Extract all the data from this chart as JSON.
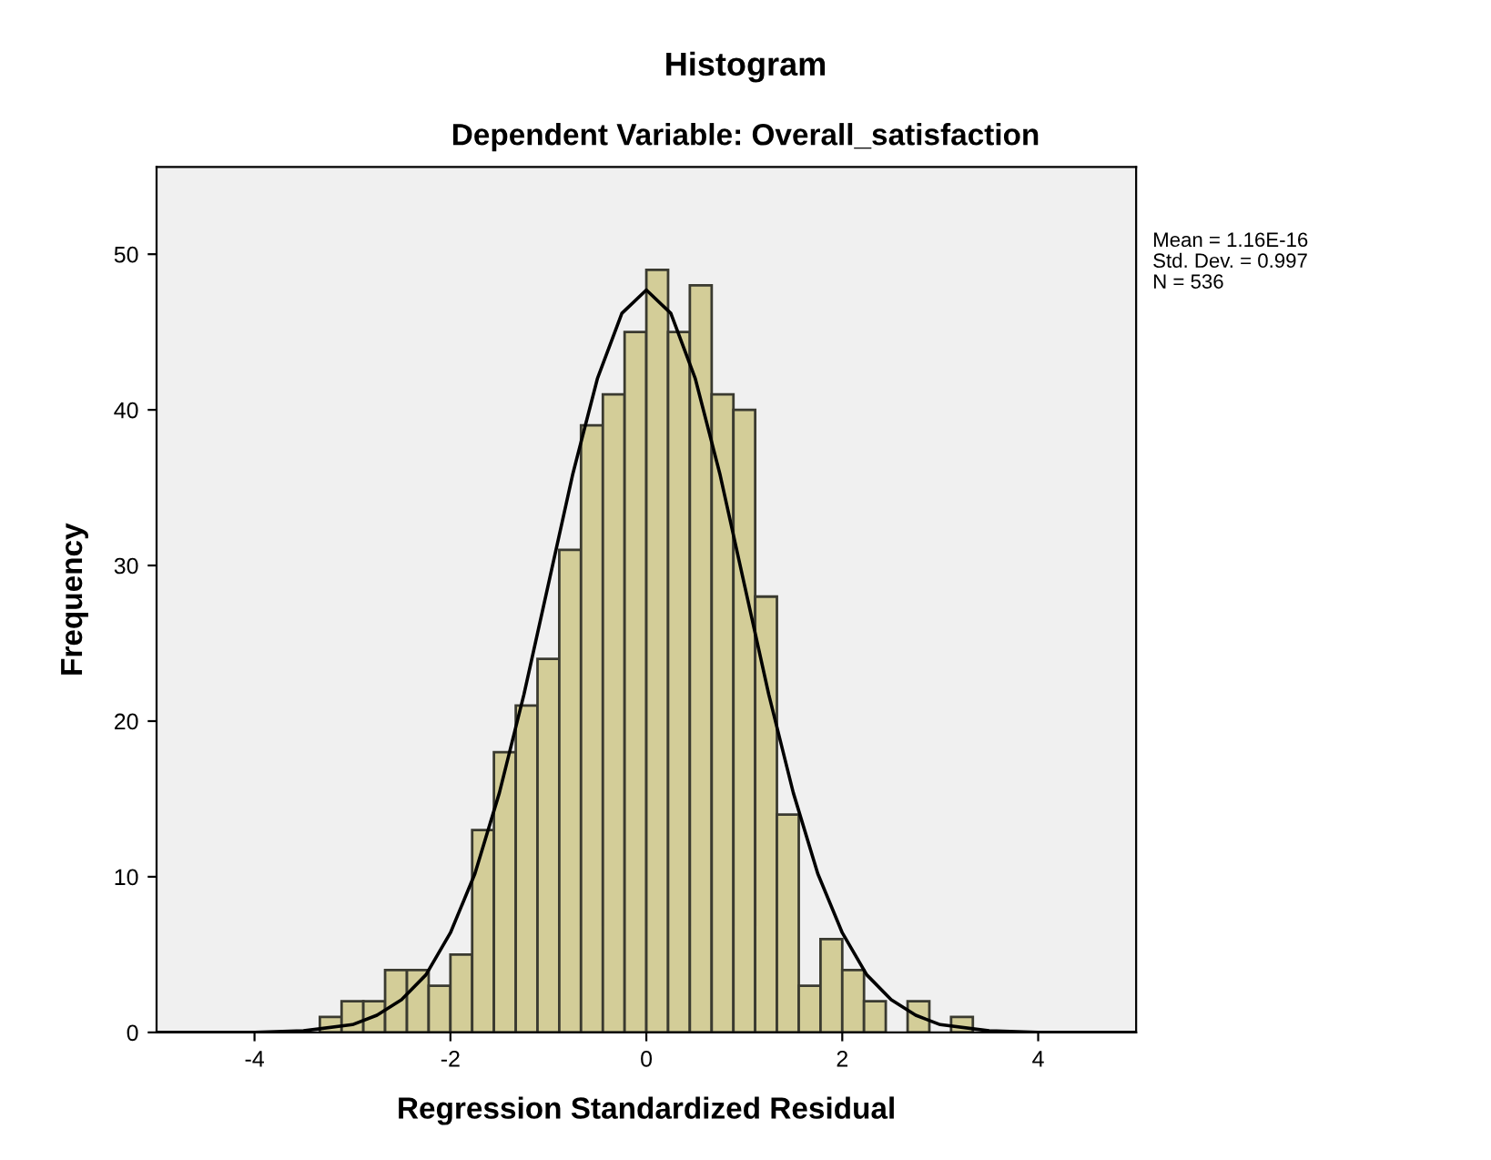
{
  "chart_data": {
    "type": "histogram",
    "title": "Histogram",
    "subtitle": "Dependent Variable: Overall_satisfaction",
    "xlabel": "Regression Standardized Residual",
    "ylabel": "Frequency",
    "bins": [
      -3.333,
      -3.111,
      -2.889,
      -2.667,
      -2.444,
      -2.222,
      -2.0,
      -1.778,
      -1.556,
      -1.333,
      -1.111,
      -0.889,
      -0.667,
      -0.444,
      -0.222,
      0.0,
      0.222,
      0.444,
      0.667,
      0.889,
      1.111,
      1.333,
      1.556,
      1.778,
      2.0,
      2.222,
      2.444,
      2.667,
      2.889,
      3.111,
      3.333
    ],
    "values": [
      1,
      2,
      2,
      4,
      4,
      3,
      5,
      13,
      18,
      21,
      24,
      31,
      39,
      41,
      45,
      49,
      45,
      48,
      41,
      40,
      28,
      14,
      3,
      6,
      4,
      2,
      0,
      2,
      0,
      1
    ],
    "color": "#d3cd98",
    "series": [
      {
        "type": "line",
        "color": "#000000",
        "x": [
          -5,
          -4.5,
          -4,
          -3.5,
          -3,
          -2.75,
          -2.5,
          -2.25,
          -2,
          -1.75,
          -1.5,
          -1.25,
          -1,
          -0.75,
          -0.5,
          -0.25,
          0,
          0.25,
          0.5,
          0.75,
          1,
          1.25,
          1.5,
          1.75,
          2,
          2.25,
          2.5,
          2.75,
          3,
          3.5,
          4,
          4.5,
          5
        ],
        "values": [
          0.0,
          0.0,
          0.0,
          0.1,
          0.5,
          1.1,
          2.1,
          3.7,
          6.4,
          10.2,
          15.4,
          21.7,
          28.8,
          35.9,
          42.0,
          46.2,
          47.7,
          46.2,
          42.0,
          35.9,
          28.8,
          21.7,
          15.4,
          10.2,
          6.4,
          3.7,
          2.1,
          1.1,
          0.5,
          0.1,
          0.0,
          0.0,
          0.0
        ]
      }
    ],
    "xlim": [
      -5,
      5
    ],
    "ylim": [
      0,
      55.6
    ],
    "xticks": [
      -4,
      -2,
      0,
      2,
      4
    ],
    "yticks": [
      0,
      10,
      20,
      30,
      40,
      50
    ],
    "grid": false,
    "legend": false,
    "annotations": [
      "Mean = 1.16E-16",
      "Std. Dev. = 0.997",
      "N = 536"
    ]
  }
}
